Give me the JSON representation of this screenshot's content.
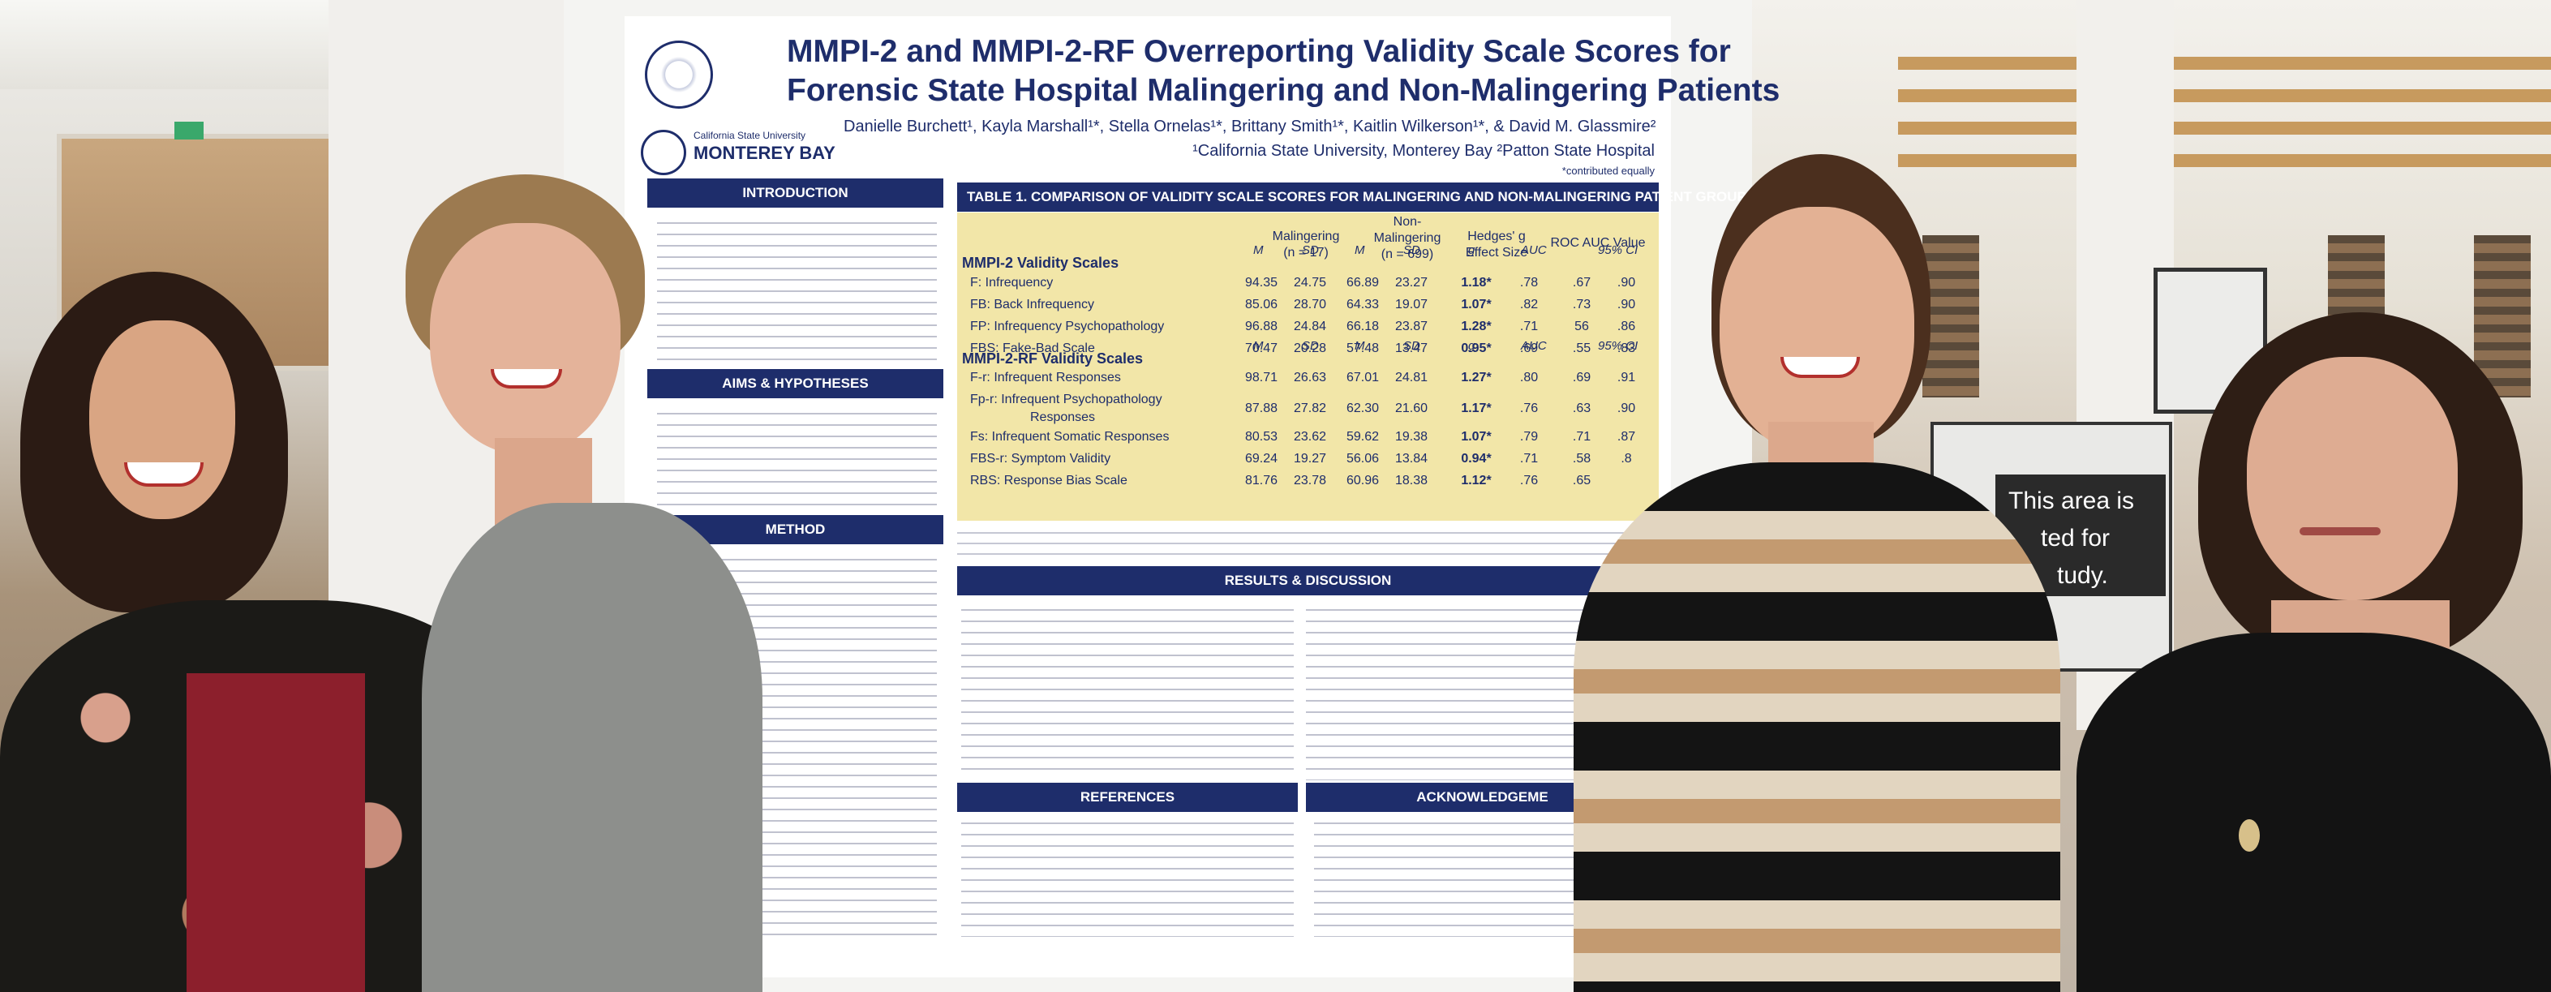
{
  "poster": {
    "title_line1": "MMPI-2 and MMPI-2-RF Overreporting Validity Scale Scores for",
    "title_line2": "Forensic State Hospital Malingering and Non-Malingering Patients",
    "authors": "Danielle Burchett¹, Kayla Marshall¹*, Stella Ornelas¹*, Brittany Smith¹*, Kaitlin Wilkerson¹*, & David M. Glassmire²",
    "affiliations": "¹California State University, Monterey Bay   ²Patton State Hospital",
    "contributed": "*contributed equally",
    "logo_small": "California State University",
    "logo_big": "MONTEREY BAY",
    "sections": {
      "introduction": "INTRODUCTION",
      "aims": "AIMS & HYPOTHESES",
      "method": "METHOD",
      "results": "RESULTS & DISCUSSION",
      "references": "REFERENCES",
      "acknowledgements": "ACKNOWLEDGEME"
    },
    "table": {
      "title": "TABLE 1. COMPARISON OF VALIDITY SCALE SCORES FOR MALINGERING AND NON-MALINGERING PATIENT GROUPS",
      "col_malingering": "Malingering",
      "col_malingering_n": "(n = 17)",
      "col_nonmal1": "Non-",
      "col_nonmal2": "Malingering",
      "col_nonmal_n": "(n = 699)",
      "col_hedges1": "Hedges' g",
      "col_hedges2": "Effect Size",
      "col_roc": "ROC AUC Value",
      "sub_m": "M",
      "sub_sd": "SD",
      "sub_g": "g",
      "sub_auc": "AUC",
      "sub_ci": "95% CI",
      "group1": "MMPI-2 Validity Scales",
      "group2": "MMPI-2-RF Validity Scales",
      "rows1": [
        {
          "name": "F: Infrequency",
          "m1": "94.35",
          "sd1": "24.75",
          "m2": "66.89",
          "sd2": "23.27",
          "g": "1.18*",
          "auc": ".78",
          "lo": ".67",
          "hi": ".90"
        },
        {
          "name": "FB: Back Infrequency",
          "m1": "85.06",
          "sd1": "28.70",
          "m2": "64.33",
          "sd2": "19.07",
          "g": "1.07*",
          "auc": ".82",
          "lo": ".73",
          "hi": ".90"
        },
        {
          "name": "FP: Infrequency Psychopathology",
          "m1": "96.88",
          "sd1": "24.84",
          "m2": "66.18",
          "sd2": "23.87",
          "g": "1.28*",
          "auc": ".71",
          "lo": "56",
          "hi": ".86"
        },
        {
          "name": "FBS: Fake-Bad Scale",
          "m1": "70.47",
          "sd1": "20.28",
          "m2": "57.48",
          "sd2": "13.47",
          "g": "0.95*",
          "auc": ".69",
          "lo": ".55",
          "hi": ".83"
        }
      ],
      "rows2": [
        {
          "name": "F-r: Infrequent Responses",
          "m1": "98.71",
          "sd1": "26.63",
          "m2": "67.01",
          "sd2": "24.81",
          "g": "1.27*",
          "auc": ".80",
          "lo": ".69",
          "hi": ".91"
        },
        {
          "name": "Fp-r: Infrequent Psychopathology",
          "name2": "Responses",
          "m1": "87.88",
          "sd1": "27.82",
          "m2": "62.30",
          "sd2": "21.60",
          "g": "1.17*",
          "auc": ".76",
          "lo": ".63",
          "hi": ".90"
        },
        {
          "name": "Fs: Infrequent Somatic Responses",
          "m1": "80.53",
          "sd1": "23.62",
          "m2": "59.62",
          "sd2": "19.38",
          "g": "1.07*",
          "auc": ".79",
          "lo": ".71",
          "hi": ".87"
        },
        {
          "name": "FBS-r: Symptom Validity",
          "m1": "69.24",
          "sd1": "19.27",
          "m2": "56.06",
          "sd2": "13.84",
          "g": "0.94*",
          "auc": ".71",
          "lo": ".58",
          "hi": ".8"
        },
        {
          "name": "RBS: Response Bias Scale",
          "m1": "81.76",
          "sd1": "23.78",
          "m2": "60.96",
          "sd2": "18.38",
          "g": "1.12*",
          "auc": ".76",
          "lo": ".65",
          "hi": ""
        }
      ]
    }
  },
  "sign": {
    "line1": "This area is",
    "line2": "ted for",
    "line3": "tudy."
  },
  "colors": {
    "navy": "#1e2d6b",
    "table_fill": "#f2e6a8",
    "exit_sign": "#3aa86b"
  }
}
